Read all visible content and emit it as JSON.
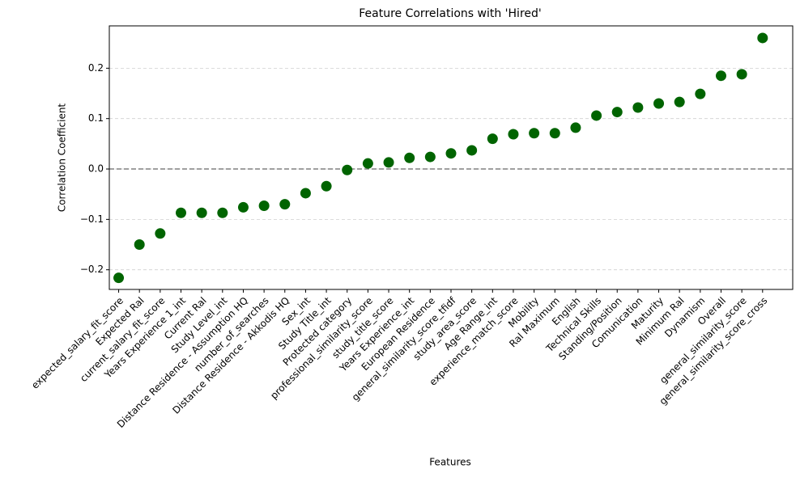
{
  "chart_data": {
    "type": "scatter",
    "title": "Feature Correlations with 'Hired'",
    "x_label": "Features",
    "y_label": "Correlation Coefficient",
    "categories": [
      "expected_salary_fit_score",
      "Expected Ral",
      "current_salary_fit_score",
      "Years Experience 1_int",
      "Current Ral",
      "Study Level_int",
      "Distance Residence - Assumption HQ",
      "number_of_searches",
      "Distance Residence - Akkodis HQ",
      "Sex_int",
      "Study Title_int",
      "Protected category",
      "professional_similarity_score",
      "study_title_score",
      "Years Experience_int",
      "European Residence",
      "general_similarity_score_tfidf",
      "study_area_score",
      "Age Range_int",
      "experience_match_score",
      "Mobility",
      "Ral Maximum",
      "English",
      "Technical Skills",
      "Standing/Position",
      "Comunication",
      "Maturity",
      "Minimum Ral",
      "Dynamism",
      "Overall",
      "general_similarity_score",
      "general_similarity_score_cross"
    ],
    "values": [
      -0.216,
      -0.15,
      -0.128,
      -0.087,
      -0.087,
      -0.087,
      -0.076,
      -0.073,
      -0.07,
      -0.048,
      -0.034,
      -0.002,
      0.011,
      0.013,
      0.022,
      0.024,
      0.031,
      0.037,
      0.06,
      0.069,
      0.071,
      0.071,
      0.082,
      0.106,
      0.113,
      0.122,
      0.13,
      0.133,
      0.149,
      0.185,
      0.188,
      0.26
    ],
    "color": "#006400",
    "ylim": [
      -0.239,
      0.284
    ],
    "yticks": [
      {
        "value": -0.2,
        "label": "−0.2"
      },
      {
        "value": -0.1,
        "label": "−0.1"
      },
      {
        "value": 0,
        "label": "0.0"
      },
      0.1,
      0.2
    ],
    "grid": true,
    "reference_line": 0
  }
}
